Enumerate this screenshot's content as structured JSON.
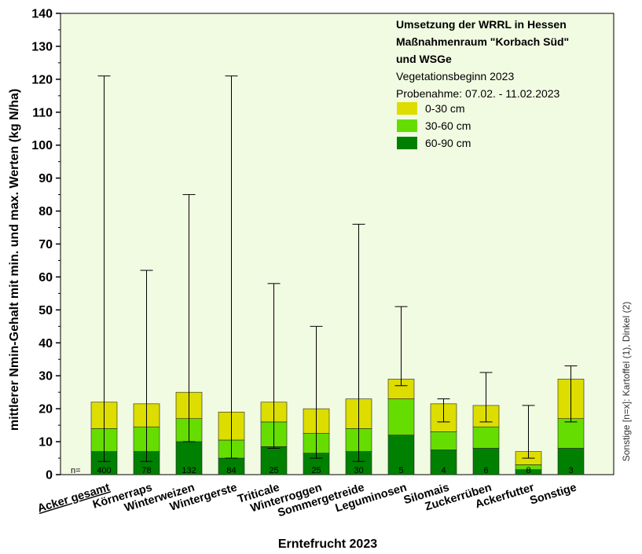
{
  "chart_data": {
    "type": "bar",
    "stacked": true,
    "title_lines": [
      "Umsetzung der WRRL in Hessen",
      "Maßnahmenraum \"Korbach Süd\"",
      "und WSGe"
    ],
    "subtitle_lines": [
      "Vegetationsbeginn 2023",
      "Probenahme: 07.02. - 11.02.2023"
    ],
    "xlabel": "Erntefrucht 2023",
    "ylabel": "mittlerer Nmin-Gehalt mit min. und max. Werten (kg N/ha)",
    "ylim": [
      0,
      140
    ],
    "yticks": [
      0,
      10,
      20,
      30,
      40,
      50,
      60,
      70,
      80,
      90,
      100,
      110,
      120,
      130,
      140
    ],
    "grid": false,
    "background_color": "#f1fbe2",
    "legend_position": "top-right",
    "n_prefix": "n=",
    "categories": [
      "Acker gesamt",
      "Körnerraps",
      "Winterweizen",
      "Wintergerste",
      "Triticale",
      "Winterroggen",
      "Sommergetreide",
      "Leguminosen",
      "Silomais",
      "Zuckerrüben",
      "Ackerfutter",
      "Sonstige"
    ],
    "underlined_category": "Acker gesamt",
    "n": [
      "400",
      "78",
      "132",
      "84",
      "25",
      "25",
      "30",
      "5",
      "4",
      "6",
      "8",
      "3"
    ],
    "series": [
      {
        "name": "60-90 cm",
        "color": "#008000",
        "values": [
          7,
          7,
          10,
          5,
          8.5,
          6.5,
          7,
          12,
          7.5,
          8,
          1.5,
          8
        ]
      },
      {
        "name": "30-60 cm",
        "color": "#66dd00",
        "values": [
          7,
          7.5,
          7,
          5.5,
          7.5,
          6,
          7,
          11,
          5.5,
          6.5,
          1.5,
          9
        ]
      },
      {
        "name": "0-30 cm",
        "color": "#dddd00",
        "values": [
          8,
          7,
          8,
          8.5,
          6,
          7.5,
          9,
          6,
          8.5,
          6.5,
          4,
          12
        ]
      }
    ],
    "min": [
      4,
      4,
      10,
      5,
      8,
      5,
      4,
      27,
      16,
      16,
      5,
      16
    ],
    "max": [
      121,
      62,
      85,
      121,
      58,
      45,
      76,
      51,
      23,
      31,
      21,
      33
    ],
    "side_note": "Sonstige [n=x]: Kartoffel (1), Dinkel (2)"
  }
}
